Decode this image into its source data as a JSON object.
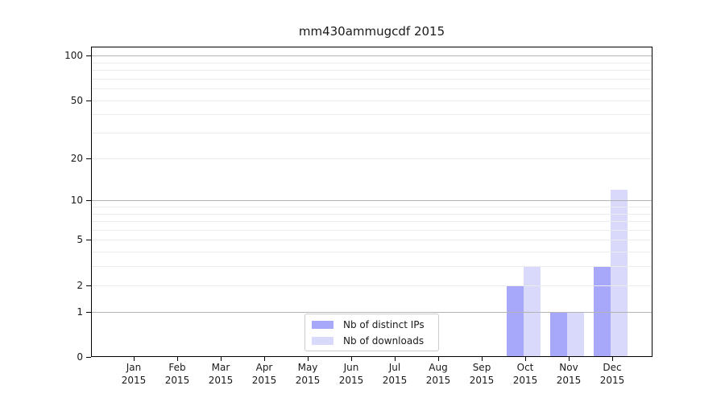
{
  "chart_data": {
    "type": "bar",
    "title": "mm430ammugcdf 2015",
    "year_label": "2015",
    "categories": [
      "Jan",
      "Feb",
      "Mar",
      "Apr",
      "May",
      "Jun",
      "Jul",
      "Aug",
      "Sep",
      "Oct",
      "Nov",
      "Dec"
    ],
    "series": [
      {
        "name": "Nb of distinct IPs",
        "color": "#a8a8fa",
        "values": [
          0,
          0,
          0,
          0,
          0,
          0,
          0,
          0,
          0,
          2,
          1,
          3
        ]
      },
      {
        "name": "Nb of downloads",
        "color": "#d9d9fb",
        "values": [
          0,
          0,
          0,
          0,
          0,
          0,
          0,
          0,
          0,
          3,
          1,
          12
        ]
      }
    ],
    "y_axis": {
      "scale": "log1p",
      "tick_values": [
        0,
        1,
        2,
        5,
        10,
        20,
        50,
        100
      ],
      "major_gridlines": [
        1,
        10,
        100
      ],
      "minor_gridlines": [
        2,
        3,
        4,
        5,
        6,
        7,
        8,
        9,
        20,
        30,
        40,
        50,
        60,
        70,
        80,
        90
      ],
      "ylim": [
        0,
        115
      ]
    },
    "legend": {
      "entries": [
        "Nb of distinct IPs",
        "Nb of downloads"
      ],
      "position": "lower center"
    },
    "grid": true,
    "colors": {
      "major_grid": "#b4b4b4",
      "minor_grid": "#ebebeb",
      "spine": "#000000",
      "text": "#1a1a1a",
      "background": "#ffffff"
    }
  }
}
